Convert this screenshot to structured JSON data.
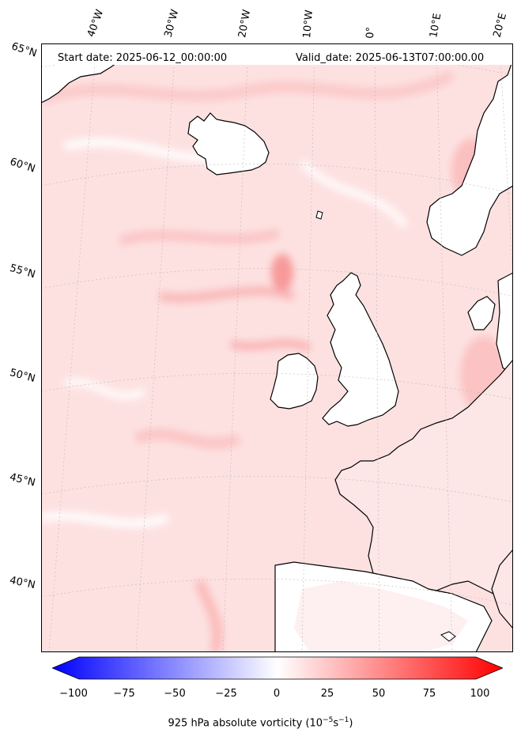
{
  "header": {
    "start_date": "Start date: 2025-06-12_00:00:00",
    "valid_date": "Valid_date: 2025-06-13T07:00:00.00"
  },
  "longitude_labels": [
    "40°W",
    "30°W",
    "20°W",
    "10°W",
    "0°",
    "10°E",
    "20°E"
  ],
  "latitude_labels": [
    "65°N",
    "60°N",
    "55°N",
    "50°N",
    "45°N",
    "40°N"
  ],
  "colorbar": {
    "ticks": [
      "−100",
      "−75",
      "−50",
      "−25",
      "0",
      "25",
      "50",
      "75",
      "100"
    ],
    "label_main": "925 hPa absolute vorticity (10",
    "label_exp1": "−5",
    "label_mid": "s",
    "label_exp2": "−1",
    "label_end": ")",
    "range": [
      -100,
      100
    ],
    "colors": {
      "min": "#0000ff",
      "mid": "#ffffff",
      "max": "#ff0000"
    }
  },
  "map": {
    "field_base_color": "#fde1e1",
    "coastline_color": "#000000"
  }
}
